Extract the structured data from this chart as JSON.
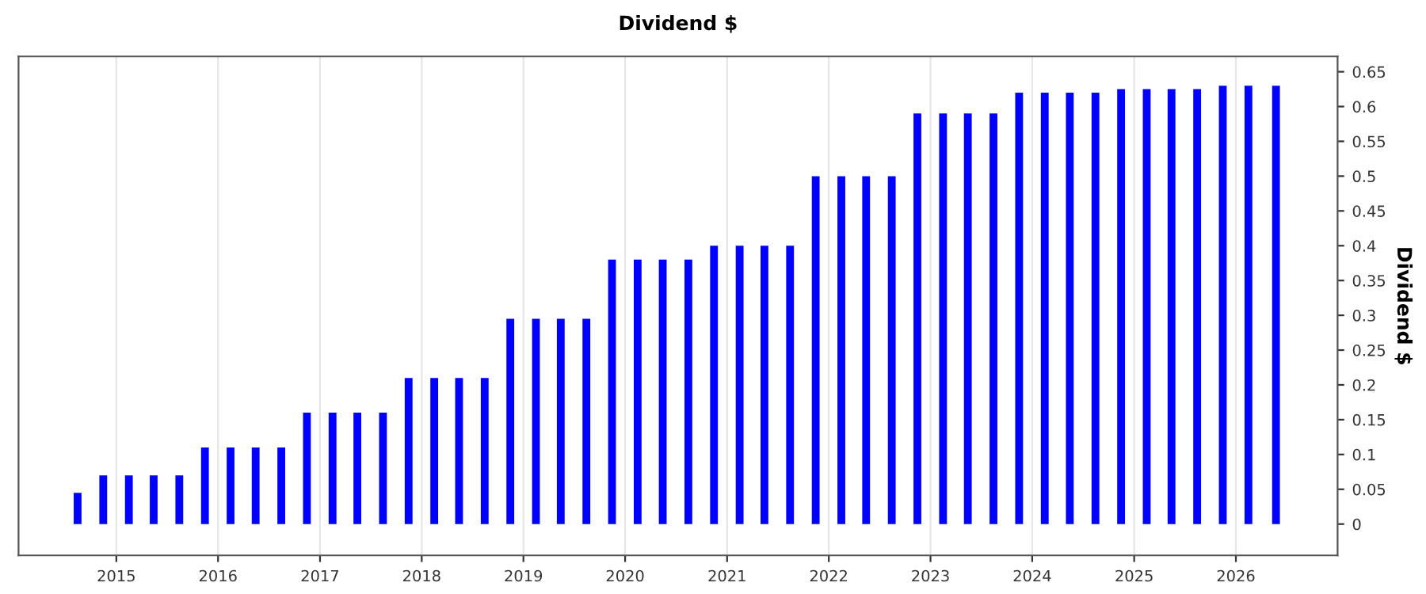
{
  "chart_data": {
    "type": "bar",
    "title": "Dividend $",
    "ylabel": "Dividend $",
    "x": [
      "2014-08-15",
      "2014-11-15",
      "2015-02-15",
      "2015-05-15",
      "2015-08-15",
      "2015-11-15",
      "2016-02-15",
      "2016-05-15",
      "2016-08-15",
      "2016-11-15",
      "2017-02-15",
      "2017-05-15",
      "2017-08-15",
      "2017-11-15",
      "2018-02-15",
      "2018-05-15",
      "2018-08-15",
      "2018-11-15",
      "2019-02-15",
      "2019-05-15",
      "2019-08-15",
      "2019-11-15",
      "2020-02-15",
      "2020-05-15",
      "2020-08-15",
      "2020-11-15",
      "2021-02-15",
      "2021-05-15",
      "2021-08-15",
      "2021-11-15",
      "2022-02-15",
      "2022-05-15",
      "2022-08-15",
      "2022-11-15",
      "2023-02-15",
      "2023-05-15",
      "2023-08-15",
      "2023-11-15",
      "2024-02-15",
      "2024-05-15",
      "2024-08-15",
      "2024-11-15",
      "2025-02-15",
      "2025-05-15",
      "2025-08-15",
      "2025-11-15",
      "2026-02-15",
      "2026-05-25"
    ],
    "series": [
      {
        "color": "#0000ff",
        "values": [
          0.045,
          0.07,
          0.07,
          0.07,
          0.07,
          0.11,
          0.11,
          0.11,
          0.11,
          0.16,
          0.16,
          0.16,
          0.16,
          0.21,
          0.21,
          0.21,
          0.21,
          0.295,
          0.295,
          0.295,
          0.295,
          0.38,
          0.38,
          0.38,
          0.38,
          0.4,
          0.4,
          0.4,
          0.4,
          0.5,
          0.5,
          0.5,
          0.5,
          0.59,
          0.59,
          0.59,
          0.59,
          0.62,
          0.62,
          0.62,
          0.62,
          0.625,
          0.625,
          0.625,
          0.625,
          0.63,
          0.63,
          0.63
        ]
      }
    ],
    "xlim": [
      "2014-01-15",
      "2027-01-01"
    ],
    "xticks": [
      {
        "value": "2015-01-01",
        "label": "2015"
      },
      {
        "value": "2016-01-01",
        "label": "2016"
      },
      {
        "value": "2017-01-01",
        "label": "2017"
      },
      {
        "value": "2018-01-01",
        "label": "2018"
      },
      {
        "value": "2019-01-01",
        "label": "2019"
      },
      {
        "value": "2020-01-01",
        "label": "2020"
      },
      {
        "value": "2021-01-01",
        "label": "2021"
      },
      {
        "value": "2022-01-01",
        "label": "2022"
      },
      {
        "value": "2023-01-01",
        "label": "2023"
      },
      {
        "value": "2024-01-01",
        "label": "2024"
      },
      {
        "value": "2025-01-01",
        "label": "2025"
      },
      {
        "value": "2026-01-01",
        "label": "2026"
      }
    ],
    "ylim": [
      -0.045,
      0.672
    ],
    "yticks": [
      0,
      0.05,
      0.1,
      0.15,
      0.2,
      0.25,
      0.3,
      0.35,
      0.4,
      0.45,
      0.5,
      0.55,
      0.6,
      0.65
    ],
    "grid": "x"
  }
}
